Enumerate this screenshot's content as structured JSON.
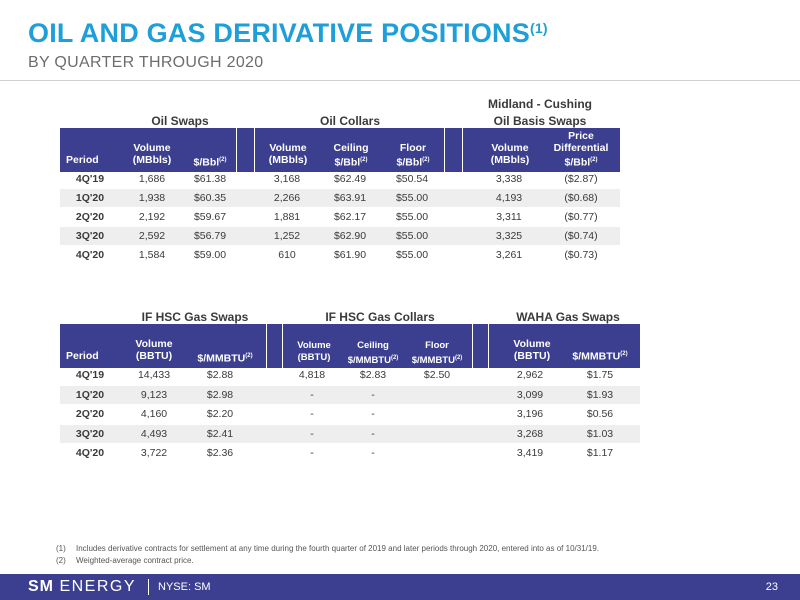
{
  "header": {
    "title": "OIL AND GAS DERIVATIVE POSITIONS",
    "title_sup": "(1)",
    "subtitle": "BY QUARTER THROUGH 2020"
  },
  "oil": {
    "groups": {
      "swaps": "Oil Swaps",
      "collars": "Oil Collars",
      "basis_line1": "Midland - Cushing",
      "basis_line2": "Oil Basis Swaps"
    },
    "columns": {
      "period": "Period",
      "vol1_a": "Volume",
      "vol1_b": "(MBbls)",
      "price1": "$/Bbl",
      "price1_sup": "(2)",
      "vol2_a": "Volume",
      "vol2_b": "(MBbls)",
      "ceiling_a": "Ceiling",
      "ceiling_b": "$/Bbl",
      "ceiling_sup": "(2)",
      "floor_a": "Floor",
      "floor_b": "$/Bbl",
      "floor_sup": "(2)",
      "vol3_a": "Volume",
      "vol3_b": "(MBbls)",
      "diff_a": "Price",
      "diff_b": "Differential",
      "diff_c": "$/Bbl",
      "diff_sup": "(2)"
    },
    "rows": [
      {
        "period": "4Q'19",
        "swap_vol": "1,686",
        "swap_price": "$61.38",
        "col_vol": "3,168",
        "ceiling": "$62.49",
        "floor": "$50.54",
        "basis_vol": "3,338",
        "diff": "($2.87)"
      },
      {
        "period": "1Q'20",
        "swap_vol": "1,938",
        "swap_price": "$60.35",
        "col_vol": "2,266",
        "ceiling": "$63.91",
        "floor": "$55.00",
        "basis_vol": "4,193",
        "diff": "($0.68)"
      },
      {
        "period": "2Q'20",
        "swap_vol": "2,192",
        "swap_price": "$59.67",
        "col_vol": "1,881",
        "ceiling": "$62.17",
        "floor": "$55.00",
        "basis_vol": "3,311",
        "diff": "($0.77)"
      },
      {
        "period": "3Q'20",
        "swap_vol": "2,592",
        "swap_price": "$56.79",
        "col_vol": "1,252",
        "ceiling": "$62.90",
        "floor": "$55.00",
        "basis_vol": "3,325",
        "diff": "($0.74)"
      },
      {
        "period": "4Q'20",
        "swap_vol": "1,584",
        "swap_price": "$59.00",
        "col_vol": "610",
        "ceiling": "$61.90",
        "floor": "$55.00",
        "basis_vol": "3,261",
        "diff": "($0.73)"
      }
    ]
  },
  "gas": {
    "groups": {
      "swaps": "IF HSC Gas Swaps",
      "collars": "IF HSC Gas Collars",
      "waha": "WAHA Gas Swaps"
    },
    "columns": {
      "period": "Period",
      "vol1_a": "Volume",
      "vol1_b": "(BBTU)",
      "price1": "$/MMBTU",
      "price1_sup": "(2)",
      "vol2_a": "Volume",
      "vol2_b": "(BBTU)",
      "ceiling_a": "Ceiling",
      "ceiling_b": "$/MMBTU",
      "ceiling_sup": "(2)",
      "floor_a": "Floor",
      "floor_b": "$/MMBTU",
      "floor_sup": "(2)",
      "vol3_a": "Volume",
      "vol3_b": "(BBTU)",
      "price3": "$/MMBTU",
      "price3_sup": "(2)"
    },
    "rows": [
      {
        "period": "4Q'19",
        "swap_vol": "14,433",
        "swap_price": "$2.88",
        "col_vol": "4,818",
        "ceiling": "$2.83",
        "floor": "$2.50",
        "waha_vol": "2,962",
        "waha_price": "$1.75"
      },
      {
        "period": "1Q'20",
        "swap_vol": "9,123",
        "swap_price": "$2.98",
        "col_vol": "-",
        "ceiling": "-",
        "floor": "",
        "waha_vol": "3,099",
        "waha_price": "$1.93"
      },
      {
        "period": "2Q'20",
        "swap_vol": "4,160",
        "swap_price": "$2.20",
        "col_vol": "-",
        "ceiling": "-",
        "floor": "",
        "waha_vol": "3,196",
        "waha_price": "$0.56"
      },
      {
        "period": "3Q'20",
        "swap_vol": "4,493",
        "swap_price": "$2.41",
        "col_vol": "-",
        "ceiling": "-",
        "floor": "",
        "waha_vol": "3,268",
        "waha_price": "$1.03"
      },
      {
        "period": "4Q'20",
        "swap_vol": "3,722",
        "swap_price": "$2.36",
        "col_vol": "-",
        "ceiling": "-",
        "floor": "",
        "waha_vol": "3,419",
        "waha_price": "$1.17"
      }
    ]
  },
  "footnotes": [
    {
      "num": "(1)",
      "text": "Includes derivative contracts for settlement at any time during the fourth quarter of 2019 and later periods through 2020, entered into as of 10/31/19."
    },
    {
      "num": "(2)",
      "text": "Weighted-average contract price."
    }
  ],
  "footer": {
    "logo_sm": "SM",
    "logo_energy": "ENERGY",
    "ticker": "NYSE: SM",
    "page": "23"
  },
  "colors": {
    "title_blue": "#1e9fd9",
    "header_navy": "#3c3f8f"
  }
}
